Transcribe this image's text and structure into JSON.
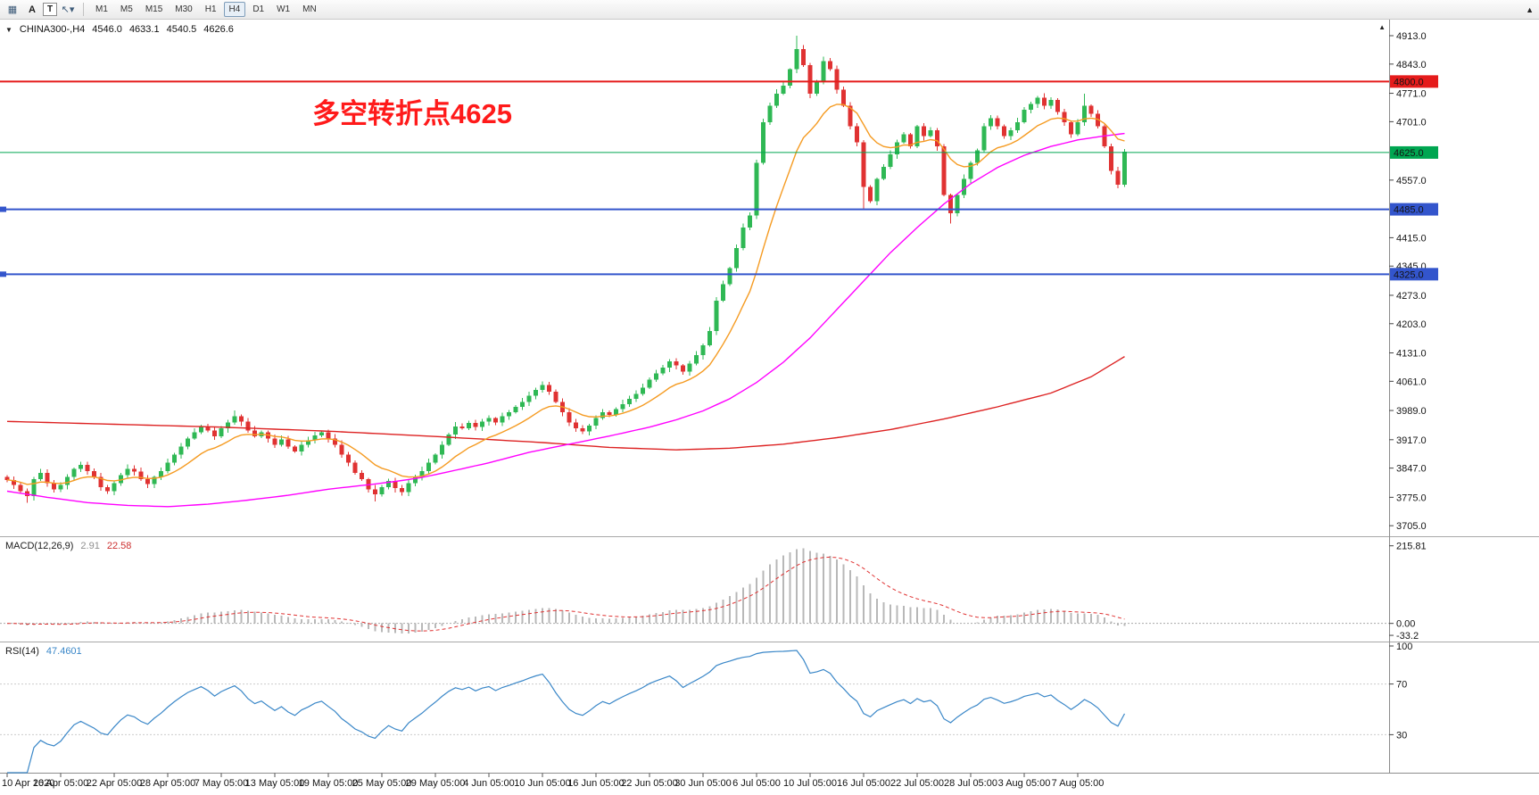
{
  "toolbar": {
    "icons": [
      {
        "name": "market-watch-icon",
        "glyph": "▦",
        "boxed": false
      },
      {
        "name": "annotation-a-icon",
        "glyph": "A",
        "boxed": false
      },
      {
        "name": "text-tool-icon",
        "glyph": "T",
        "boxed": true
      },
      {
        "name": "cursor-tool-icon",
        "glyph": "↖▾",
        "boxed": false
      }
    ],
    "timeframes": [
      "M1",
      "M5",
      "M15",
      "M30",
      "H1",
      "H4",
      "D1",
      "W1",
      "MN"
    ],
    "active_timeframe": "H4",
    "dock_arrow": "▲"
  },
  "info_bar": {
    "collapse_icon": "▼",
    "symbol": "CHINA300-,H4",
    "open": "4546.0",
    "high": "4633.1",
    "low": "4540.5",
    "close": "4626.6"
  },
  "annotation": {
    "text": "多空转折点4625",
    "color": "#ff1a1a"
  },
  "panels": {
    "macd": {
      "label": "MACD(12,26,9)",
      "value_main": "2.91",
      "value_signal": "22.58",
      "ticks": [
        {
          "value": 215.81,
          "label": "215.81"
        },
        {
          "value": 0,
          "label": "0.00"
        },
        {
          "value": -33.2,
          "label": "-33.2"
        }
      ]
    },
    "rsi": {
      "label": "RSI(14)",
      "value": "47.4601",
      "ticks": [
        {
          "value": 100,
          "label": "100"
        },
        {
          "value": 70,
          "label": "70"
        },
        {
          "value": 30,
          "label": "30"
        }
      ],
      "levels": [
        70,
        30
      ]
    }
  },
  "chart_data": {
    "type": "candlestick",
    "symbol": "CHINA300-",
    "timeframe": "H4",
    "title": "CHINA300-,H4",
    "price_axis": {
      "min": 3690,
      "max": 4935,
      "ticks": [
        4913.0,
        4843.0,
        4771.0,
        4701.0,
        4557.0,
        4415.0,
        4345.0,
        4273.0,
        4203.0,
        4131.0,
        4061.0,
        3989.0,
        3917.0,
        3847.0,
        3775.0,
        3705.0
      ]
    },
    "first_open": 3825,
    "closes": [
      3818,
      3805,
      3790,
      3778,
      3820,
      3835,
      3810,
      3795,
      3805,
      3825,
      3845,
      3855,
      3840,
      3825,
      3800,
      3790,
      3810,
      3830,
      3845,
      3838,
      3820,
      3808,
      3825,
      3840,
      3860,
      3880,
      3900,
      3920,
      3935,
      3950,
      3940,
      3925,
      3945,
      3960,
      3975,
      3962,
      3940,
      3925,
      3935,
      3920,
      3905,
      3918,
      3900,
      3888,
      3905,
      3915,
      3928,
      3935,
      3920,
      3905,
      3880,
      3860,
      3835,
      3820,
      3795,
      3782,
      3800,
      3815,
      3798,
      3788,
      3810,
      3825,
      3840,
      3860,
      3880,
      3905,
      3930,
      3950,
      3945,
      3958,
      3948,
      3962,
      3970,
      3960,
      3975,
      3985,
      3998,
      4010,
      4025,
      4040,
      4052,
      4035,
      4010,
      3985,
      3960,
      3945,
      3938,
      3952,
      3970,
      3985,
      3978,
      3992,
      4005,
      4018,
      4030,
      4045,
      4065,
      4080,
      4095,
      4110,
      4100,
      4085,
      4105,
      4125,
      4150,
      4185,
      4260,
      4300,
      4340,
      4390,
      4440,
      4470,
      4600,
      4700,
      4740,
      4770,
      4790,
      4830,
      4880,
      4840,
      4770,
      4800,
      4850,
      4830,
      4780,
      4740,
      4690,
      4650,
      4540,
      4505,
      4560,
      4590,
      4620,
      4650,
      4670,
      4640,
      4690,
      4665,
      4680,
      4640,
      4520,
      4475,
      4520,
      4560,
      4600,
      4630,
      4690,
      4710,
      4690,
      4665,
      4680,
      4700,
      4730,
      4745,
      4760,
      4740,
      4755,
      4725,
      4700,
      4670,
      4700,
      4740,
      4720,
      4690,
      4640,
      4580,
      4546,
      4626.6
    ],
    "wick_overrides": {
      "3": {
        "low": 3762
      },
      "34": {
        "high": 3989
      },
      "55": {
        "low": 3765
      },
      "80": {
        "high": 4061
      },
      "118": {
        "high": 4913
      },
      "128": {
        "low": 4485
      },
      "141": {
        "low": 4450
      },
      "161": {
        "high": 4770
      },
      "167": {
        "high": 4633.1,
        "low": 4540.5
      }
    },
    "levels": [
      {
        "price": 4800,
        "label": "4800.0",
        "color": "#e51b1b",
        "width": 2,
        "left_marker": false
      },
      {
        "price": 4625,
        "label": "4625.0",
        "color": "#00a651",
        "width": 1,
        "left_marker": false
      },
      {
        "price": 4485,
        "label": "4485.0",
        "color": "#3355cc",
        "width": 2,
        "left_marker": true
      },
      {
        "price": 4325,
        "label": "4325.0",
        "color": "#3355cc",
        "width": 2,
        "left_marker": true
      }
    ],
    "moving_averages": {
      "fast": {
        "name": "MA-fast-orange",
        "color": "#f59b22",
        "period": 12
      },
      "slow": {
        "name": "MA-slow-magenta",
        "color": "#ff00ff",
        "anchors": [
          [
            0,
            3790
          ],
          [
            6,
            3775
          ],
          [
            12,
            3762
          ],
          [
            18,
            3755
          ],
          [
            24,
            3752
          ],
          [
            30,
            3758
          ],
          [
            36,
            3768
          ],
          [
            42,
            3780
          ],
          [
            48,
            3795
          ],
          [
            54,
            3806
          ],
          [
            58,
            3814
          ],
          [
            62,
            3824
          ],
          [
            66,
            3838
          ],
          [
            72,
            3860
          ],
          [
            78,
            3886
          ],
          [
            84,
            3906
          ],
          [
            90,
            3926
          ],
          [
            96,
            3948
          ],
          [
            100,
            3966
          ],
          [
            104,
            3988
          ],
          [
            108,
            4018
          ],
          [
            112,
            4058
          ],
          [
            116,
            4108
          ],
          [
            120,
            4168
          ],
          [
            124,
            4238
          ],
          [
            128,
            4308
          ],
          [
            132,
            4378
          ],
          [
            136,
            4440
          ],
          [
            140,
            4498
          ],
          [
            144,
            4548
          ],
          [
            148,
            4588
          ],
          [
            152,
            4618
          ],
          [
            156,
            4640
          ],
          [
            160,
            4656
          ],
          [
            164,
            4666
          ],
          [
            167,
            4672
          ]
        ]
      },
      "long": {
        "name": "MA-long-red",
        "color": "#dd2222",
        "anchors": [
          [
            0,
            3962
          ],
          [
            16,
            3955
          ],
          [
            32,
            3948
          ],
          [
            48,
            3938
          ],
          [
            64,
            3925
          ],
          [
            80,
            3910
          ],
          [
            90,
            3898
          ],
          [
            100,
            3892
          ],
          [
            108,
            3896
          ],
          [
            116,
            3906
          ],
          [
            124,
            3922
          ],
          [
            132,
            3942
          ],
          [
            140,
            3968
          ],
          [
            148,
            3998
          ],
          [
            156,
            4032
          ],
          [
            162,
            4072
          ],
          [
            167,
            4122
          ]
        ]
      }
    },
    "indicators": {
      "macd": {
        "fast": 12,
        "slow": 26,
        "signal": 9,
        "current_hist": 2.91,
        "current_signal": 22.58
      },
      "rsi": {
        "period": 14,
        "current": 47.4601
      }
    },
    "date_ticks": [
      {
        "bar": 0,
        "label": "10 Apr 2020"
      },
      {
        "bar": 8,
        "label": "16 Apr 05:00"
      },
      {
        "bar": 16,
        "label": "22 Apr 05:00"
      },
      {
        "bar": 24,
        "label": "28 Apr 05:00"
      },
      {
        "bar": 32,
        "label": "7 May 05:00"
      },
      {
        "bar": 40,
        "label": "13 May 05:00"
      },
      {
        "bar": 48,
        "label": "19 May 05:00"
      },
      {
        "bar": 56,
        "label": "25 May 05:00"
      },
      {
        "bar": 64,
        "label": "29 May 05:00"
      },
      {
        "bar": 72,
        "label": "4 Jun 05:00"
      },
      {
        "bar": 80,
        "label": "10 Jun 05:00"
      },
      {
        "bar": 88,
        "label": "16 Jun 05:00"
      },
      {
        "bar": 96,
        "label": "22 Jun 05:00"
      },
      {
        "bar": 104,
        "label": "30 Jun 05:00"
      },
      {
        "bar": 112,
        "label": "6 Jul 05:00"
      },
      {
        "bar": 120,
        "label": "10 Jul 05:00"
      },
      {
        "bar": 128,
        "label": "16 Jul 05:00"
      },
      {
        "bar": 136,
        "label": "22 Jul 05:00"
      },
      {
        "bar": 144,
        "label": "28 Jul 05:00"
      },
      {
        "bar": 152,
        "label": "3 Aug 05:00"
      },
      {
        "bar": 160,
        "label": "7 Aug 05:00"
      }
    ]
  },
  "colors": {
    "up_candle": "#2fb854",
    "down_candle": "#e03232",
    "macd_hist": "#b8b8b8",
    "macd_signal": "#e03232",
    "rsi_line": "#3a87c8",
    "axis_line": "#8c8c8c",
    "divider": "#a8a8a8"
  }
}
